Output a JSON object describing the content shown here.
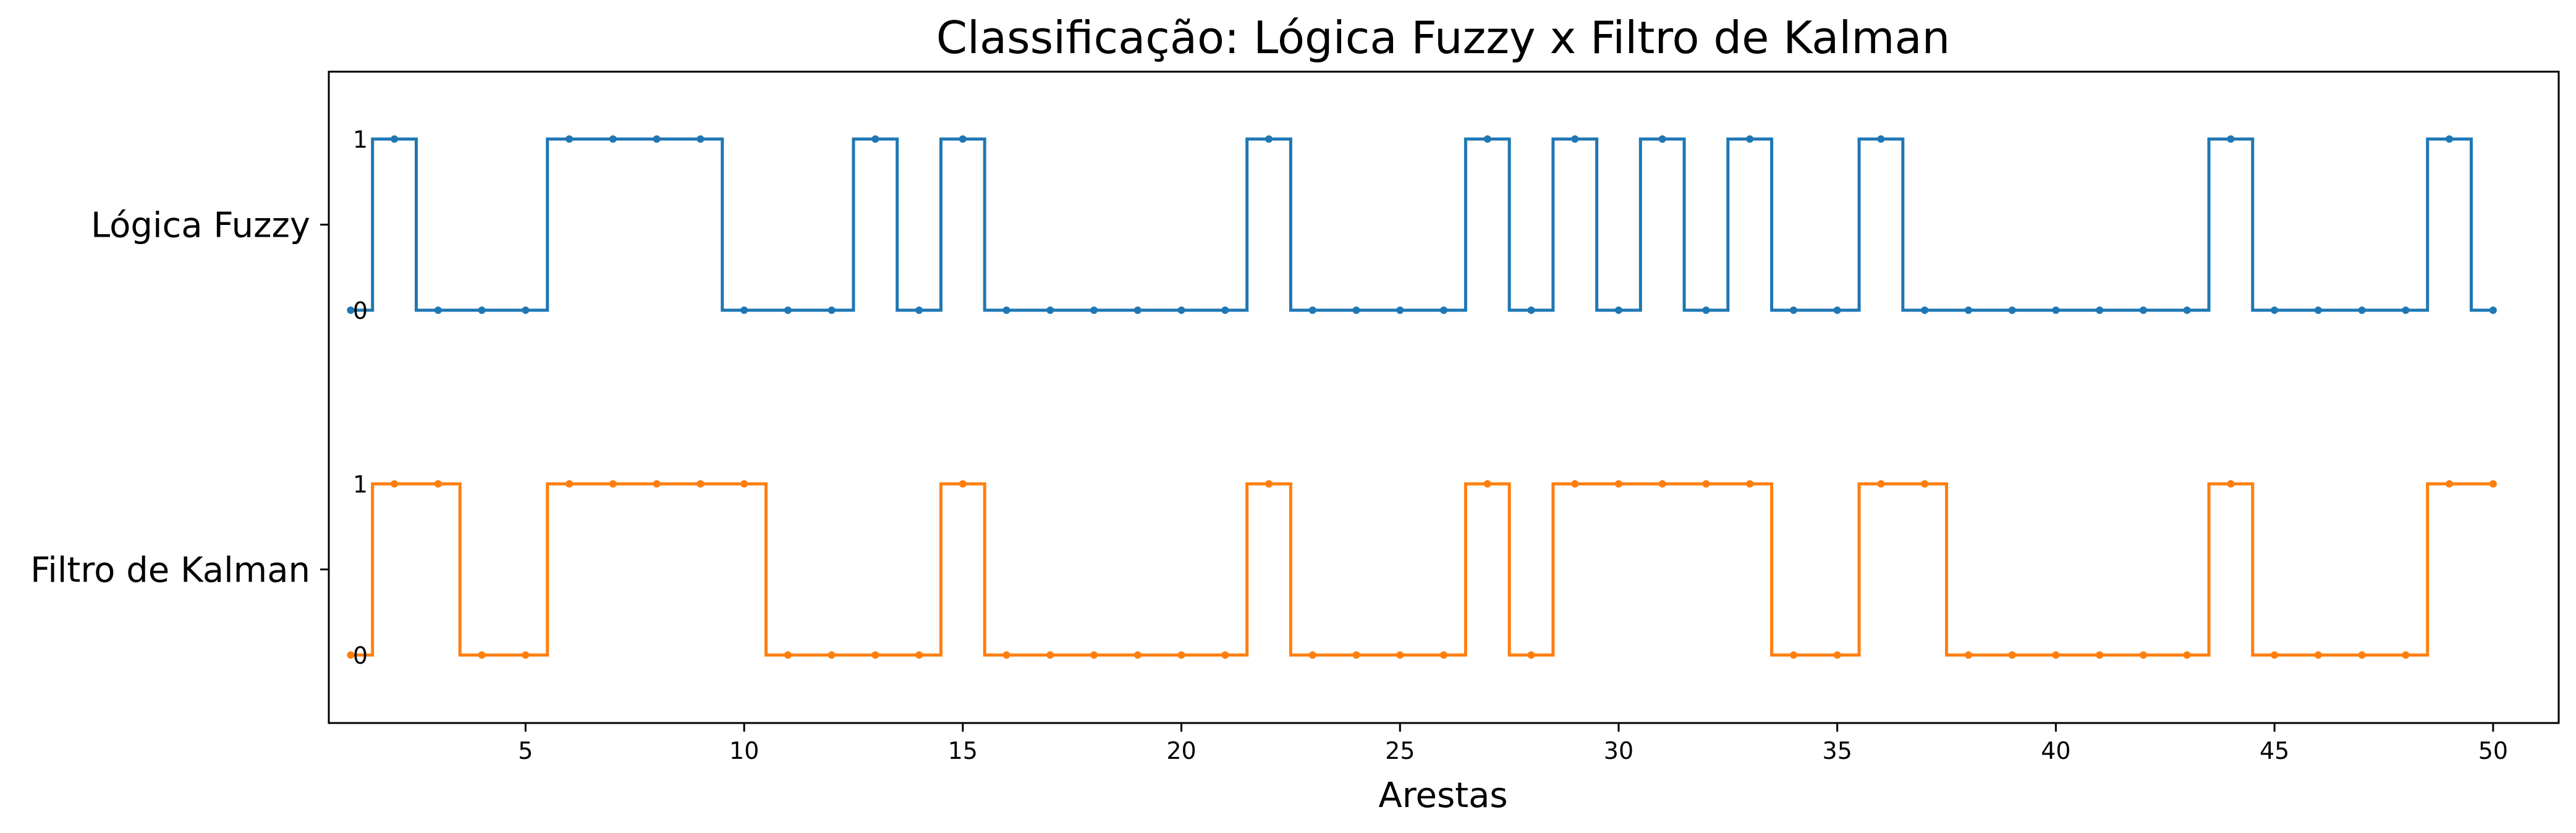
{
  "chart_data": {
    "type": "line",
    "step": "mid",
    "title": "Classificação: Lógica Fuzzy x Filtro de Kalman",
    "xlabel": "Arestas",
    "ylabel": "",
    "xlim": [
      0.5,
      51.5
    ],
    "xticks": [
      "5",
      "10",
      "15",
      "20",
      "25",
      "30",
      "35",
      "40",
      "45",
      "50"
    ],
    "level_ticks": [
      "0",
      "1"
    ],
    "grid": false,
    "legend": "none",
    "x": [
      1,
      2,
      3,
      4,
      5,
      6,
      7,
      8,
      9,
      10,
      11,
      12,
      13,
      14,
      15,
      16,
      17,
      18,
      19,
      20,
      21,
      22,
      23,
      24,
      25,
      26,
      27,
      28,
      29,
      30,
      31,
      32,
      33,
      34,
      35,
      36,
      37,
      38,
      39,
      40,
      41,
      42,
      43,
      44,
      45,
      46,
      47,
      48,
      49,
      50
    ],
    "series": [
      {
        "name": "Lógica Fuzzy",
        "color": "#1f77b4",
        "values": [
          0,
          1,
          0,
          0,
          0,
          1,
          1,
          1,
          1,
          0,
          0,
          0,
          1,
          0,
          1,
          0,
          0,
          0,
          0,
          0,
          0,
          1,
          0,
          0,
          0,
          0,
          1,
          0,
          1,
          0,
          1,
          0,
          1,
          0,
          0,
          1,
          0,
          0,
          0,
          0,
          0,
          0,
          0,
          1,
          0,
          0,
          0,
          0,
          1,
          0
        ]
      },
      {
        "name": "Filtro de Kalman",
        "color": "#ff7f0e",
        "values": [
          0,
          1,
          1,
          0,
          0,
          1,
          1,
          1,
          1,
          1,
          0,
          0,
          0,
          0,
          1,
          0,
          0,
          0,
          0,
          0,
          0,
          1,
          0,
          0,
          0,
          0,
          1,
          0,
          1,
          1,
          1,
          1,
          1,
          0,
          0,
          1,
          1,
          0,
          0,
          0,
          0,
          0,
          0,
          1,
          0,
          0,
          0,
          0,
          1,
          1
        ]
      }
    ]
  }
}
